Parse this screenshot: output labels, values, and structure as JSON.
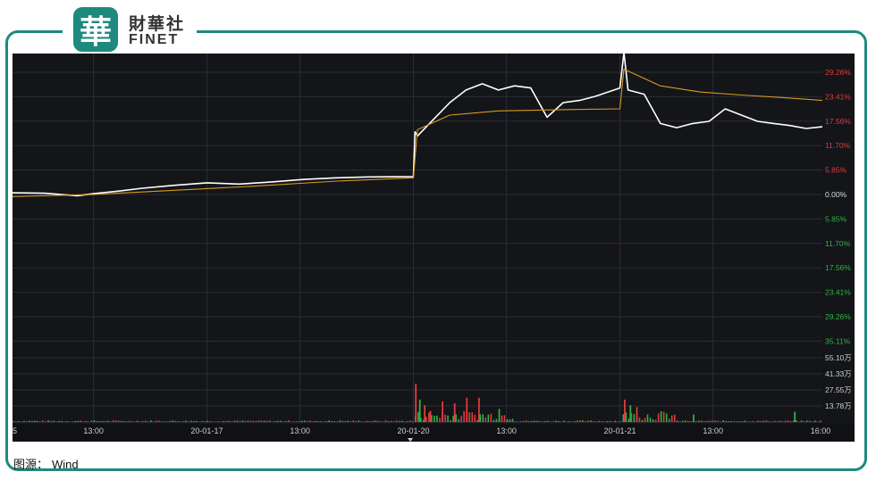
{
  "logo": {
    "badge_char": "華",
    "name_cn": "財華社",
    "name_en": "FINET"
  },
  "caption": {
    "label": "图源：",
    "source": "Wind"
  },
  "colors": {
    "frame": "#1e8a7e",
    "background": "#141519",
    "price": "#ffffff",
    "average": "#d79a1f",
    "up": "#e23b3b",
    "down": "#2fb344"
  },
  "chart_data": {
    "type": "line",
    "x_tick_labels": [
      "5",
      "13:00",
      "20-01-17",
      "13:00",
      "20-01-20",
      "13:00",
      "20-01-21",
      "13:00",
      "16:00"
    ],
    "x_range": [
      0,
      1
    ],
    "y_range_pct": [
      -35.11,
      35.11
    ],
    "y_tick_labels_up": [
      "29.26%",
      "23.41%",
      "17.56%",
      "11.70%",
      "5.85%"
    ],
    "y_tick_label_zero": "0.00%",
    "y_tick_labels_down": [
      "5.85%",
      "11.70%",
      "17.56%",
      "23.41%",
      "29.26%",
      "35.11%"
    ],
    "volume_tick_labels": [
      "55.10万",
      "41.33万",
      "27.55万",
      "13.78万"
    ],
    "volume_range": [
      0,
      68.88
    ],
    "grid": true,
    "series": [
      {
        "role": "price",
        "x": [
          0,
          0.04,
          0.08,
          0.1,
          0.13,
          0.16,
          0.2,
          0.24,
          0.28,
          0.32,
          0.36,
          0.4,
          0.44,
          0.495,
          0.497,
          0.5,
          0.52,
          0.54,
          0.56,
          0.58,
          0.6,
          0.62,
          0.64,
          0.66,
          0.68,
          0.7,
          0.72,
          0.75,
          0.755,
          0.76,
          0.78,
          0.8,
          0.82,
          0.84,
          0.86,
          0.88,
          0.9,
          0.92,
          0.94,
          0.96,
          0.98,
          1.0
        ],
        "y": [
          0.4,
          0.3,
          -0.3,
          0.2,
          0.8,
          1.5,
          2.2,
          2.8,
          2.5,
          3.0,
          3.6,
          4.0,
          4.2,
          4.3,
          15.0,
          14.0,
          18.0,
          22.0,
          25.0,
          26.5,
          25.0,
          26.0,
          25.5,
          18.5,
          22.0,
          22.5,
          23.5,
          25.5,
          34.0,
          25.0,
          24.0,
          17.0,
          16.0,
          17.0,
          17.5,
          20.5,
          19.0,
          17.5,
          17.0,
          16.5,
          15.8,
          16.2
        ]
      },
      {
        "role": "average",
        "x": [
          0,
          0.1,
          0.2,
          0.3,
          0.4,
          0.495,
          0.5,
          0.54,
          0.6,
          0.68,
          0.75,
          0.755,
          0.8,
          0.85,
          0.9,
          0.95,
          1.0
        ],
        "y": [
          -0.5,
          0.0,
          1.0,
          2.0,
          3.2,
          4.0,
          15.5,
          19.0,
          20.0,
          20.3,
          20.5,
          30.0,
          26.0,
          24.5,
          23.8,
          23.2,
          22.5
        ]
      }
    ],
    "volume_bars": [
      {
        "x": 0.497,
        "v": 41.0,
        "dir": "up"
      },
      {
        "x": 0.502,
        "v": 24.0,
        "dir": "down"
      },
      {
        "x": 0.508,
        "v": 18.0,
        "dir": "up"
      },
      {
        "x": 0.515,
        "v": 12.0,
        "dir": "up"
      },
      {
        "x": 0.53,
        "v": 22.0,
        "dir": "up"
      },
      {
        "x": 0.545,
        "v": 20.0,
        "dir": "up"
      },
      {
        "x": 0.56,
        "v": 26.0,
        "dir": "up"
      },
      {
        "x": 0.575,
        "v": 26.0,
        "dir": "up"
      },
      {
        "x": 0.6,
        "v": 14.0,
        "dir": "down"
      },
      {
        "x": 0.755,
        "v": 24.0,
        "dir": "up"
      },
      {
        "x": 0.762,
        "v": 18.0,
        "dir": "down"
      },
      {
        "x": 0.77,
        "v": 16.0,
        "dir": "up"
      },
      {
        "x": 0.84,
        "v": 8.0,
        "dir": "down"
      },
      {
        "x": 0.965,
        "v": 11.0,
        "dir": "down"
      }
    ]
  }
}
